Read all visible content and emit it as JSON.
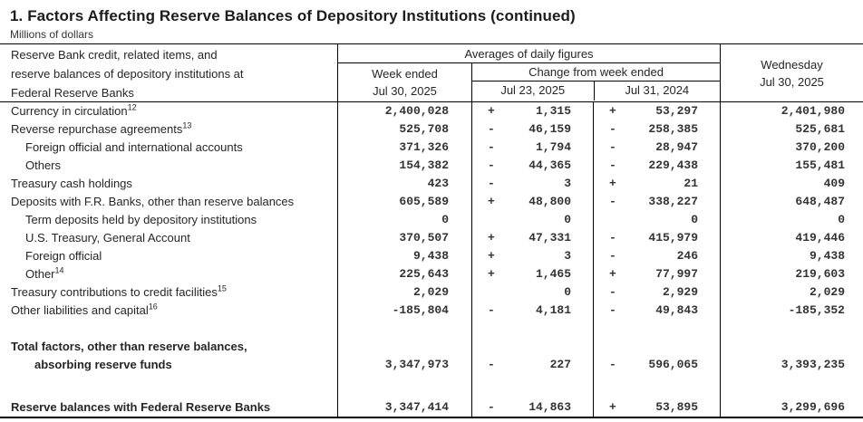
{
  "title": "1. Factors Affecting Reserve Balances of Depository Institutions (continued)",
  "subtitle": "Millions of dollars",
  "table": {
    "header": {
      "stub_lines": [
        "Reserve Bank credit, related items, and",
        "reserve balances of depository institutions at",
        "Federal Reserve Banks"
      ],
      "averages_label": "Averages of daily figures",
      "week_ended_label": "Week ended",
      "week_ended_date": "Jul 30, 2025",
      "change_label": "Change from week ended",
      "change_week_date": "Jul 23, 2025",
      "change_year_date": "Jul 31, 2024",
      "wednesday_label": "Wednesday",
      "wednesday_date": "Jul 30, 2025"
    },
    "rows": [
      {
        "label": "Currency in circulation",
        "sup": "12",
        "indent": 0,
        "bold": false,
        "week": "2,400,028",
        "chg_wk_sign": "+",
        "chg_wk": "1,315",
        "chg_yr_sign": "+",
        "chg_yr": "53,297",
        "wed": "2,401,980"
      },
      {
        "label": "Reverse repurchase agreements",
        "sup": "13",
        "indent": 0,
        "bold": false,
        "week": "525,708",
        "chg_wk_sign": "-",
        "chg_wk": "46,159",
        "chg_yr_sign": "-",
        "chg_yr": "258,385",
        "wed": "525,681"
      },
      {
        "label": "Foreign official and international accounts",
        "sup": "",
        "indent": 1,
        "bold": false,
        "week": "371,326",
        "chg_wk_sign": "-",
        "chg_wk": "1,794",
        "chg_yr_sign": "-",
        "chg_yr": "28,947",
        "wed": "370,200"
      },
      {
        "label": "Others",
        "sup": "",
        "indent": 1,
        "bold": false,
        "week": "154,382",
        "chg_wk_sign": "-",
        "chg_wk": "44,365",
        "chg_yr_sign": "-",
        "chg_yr": "229,438",
        "wed": "155,481"
      },
      {
        "label": "Treasury cash holdings",
        "sup": "",
        "indent": 0,
        "bold": false,
        "week": "423",
        "chg_wk_sign": "-",
        "chg_wk": "3",
        "chg_yr_sign": "+",
        "chg_yr": "21",
        "wed": "409"
      },
      {
        "label": "Deposits with F.R. Banks, other than reserve balances",
        "sup": "",
        "indent": 0,
        "bold": false,
        "week": "605,589",
        "chg_wk_sign": "+",
        "chg_wk": "48,800",
        "chg_yr_sign": "-",
        "chg_yr": "338,227",
        "wed": "648,487"
      },
      {
        "label": "Term deposits held by depository institutions",
        "sup": "",
        "indent": 1,
        "bold": false,
        "week": "0",
        "chg_wk_sign": "",
        "chg_wk": "0",
        "chg_yr_sign": "",
        "chg_yr": "0",
        "wed": "0"
      },
      {
        "label": "U.S. Treasury, General Account",
        "sup": "",
        "indent": 1,
        "bold": false,
        "week": "370,507",
        "chg_wk_sign": "+",
        "chg_wk": "47,331",
        "chg_yr_sign": "-",
        "chg_yr": "415,979",
        "wed": "419,446"
      },
      {
        "label": "Foreign official",
        "sup": "",
        "indent": 1,
        "bold": false,
        "week": "9,438",
        "chg_wk_sign": "+",
        "chg_wk": "3",
        "chg_yr_sign": "-",
        "chg_yr": "246",
        "wed": "9,438"
      },
      {
        "label": "Other",
        "sup": "14",
        "indent": 1,
        "bold": false,
        "week": "225,643",
        "chg_wk_sign": "+",
        "chg_wk": "1,465",
        "chg_yr_sign": "+",
        "chg_yr": "77,997",
        "wed": "219,603"
      },
      {
        "label": "Treasury contributions to credit facilities",
        "sup": "15",
        "indent": 0,
        "bold": false,
        "week": "2,029",
        "chg_wk_sign": "",
        "chg_wk": "0",
        "chg_yr_sign": "-",
        "chg_yr": "2,929",
        "wed": "2,029"
      },
      {
        "label": "Other liabilities and capital",
        "sup": "16",
        "indent": 0,
        "bold": false,
        "week": "-185,804",
        "chg_wk_sign": "-",
        "chg_wk": "4,181",
        "chg_yr_sign": "-",
        "chg_yr": "49,843",
        "wed": "-185,352"
      },
      {
        "spacer": 20
      },
      {
        "label": "Total factors, other than reserve balances,",
        "label2": "absorbing reserve funds",
        "sup": "",
        "indent": 0,
        "bold": true,
        "week": "3,347,973",
        "chg_wk_sign": "-",
        "chg_wk": "227",
        "chg_yr_sign": "-",
        "chg_yr": "596,065",
        "wed": "3,393,235"
      },
      {
        "spacer": 27
      },
      {
        "label": "Reserve balances with Federal Reserve Banks",
        "sup": "",
        "indent": 0,
        "bold": true,
        "week": "3,347,414",
        "chg_wk_sign": "-",
        "chg_wk": "14,863",
        "chg_yr_sign": "+",
        "chg_yr": "53,895",
        "wed": "3,299,696"
      }
    ]
  }
}
